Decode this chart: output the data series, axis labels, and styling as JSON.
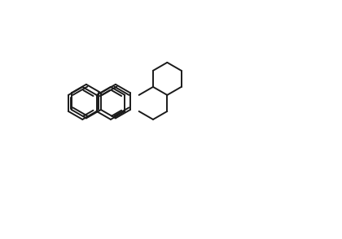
{
  "bg_color": "#ffffff",
  "line_color": "#1a1a1a",
  "atom_label_color_default": "#1a1a1a",
  "atom_label_color_N": "#cc8800",
  "atom_label_color_S": "#cc8800",
  "atom_label_color_O_nitro": "#cc8800",
  "figsize": [
    4.2,
    2.94
  ],
  "dpi": 100
}
